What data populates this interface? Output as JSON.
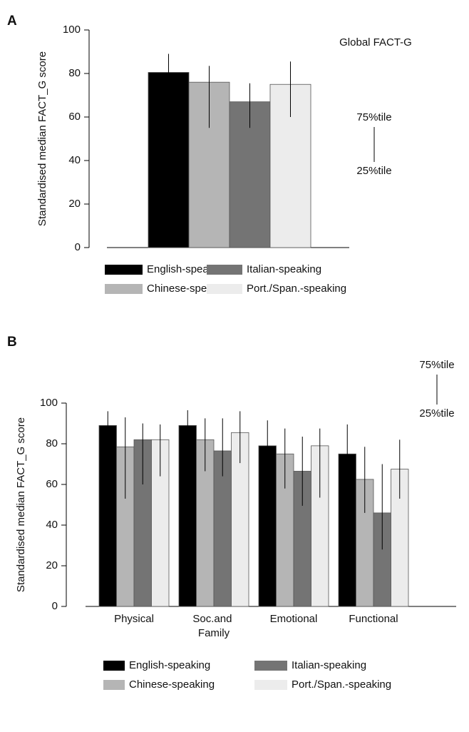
{
  "chart_data": [
    {
      "type": "bar",
      "panel_label": "A",
      "y_label": "Standardised median FACT_G score",
      "annotation": "Global FACT-G",
      "percentile_key": {
        "upper": "75%tile",
        "lower": "25%tile"
      },
      "categories": [
        null
      ],
      "series": [
        {
          "name": "English-speaking",
          "color": "#000000",
          "values": [
            80.5
          ],
          "q25": [
            70
          ],
          "q75": [
            89
          ]
        },
        {
          "name": "Chinese-speaking",
          "color": "#b5b5b5",
          "values": [
            76
          ],
          "q25": [
            55
          ],
          "q75": [
            83.5
          ]
        },
        {
          "name": "Italian-speaking",
          "color": "#747474",
          "values": [
            67
          ],
          "q25": [
            55
          ],
          "q75": [
            75.5
          ]
        },
        {
          "name": "Port./Span.-speaking",
          "color": "#ececec",
          "values": [
            75
          ],
          "q25": [
            60
          ],
          "q75": [
            85.5
          ]
        }
      ],
      "ylim": [
        0,
        100
      ],
      "yticks": [
        0,
        20,
        40,
        60,
        80,
        100
      ]
    },
    {
      "type": "bar",
      "panel_label": "B",
      "y_label": "Standardised median FACT_G score",
      "percentile_key": {
        "upper": "75%tile",
        "lower": "25%tile"
      },
      "categories": [
        "Physical",
        "Soc.and Family",
        "Emotional",
        "Functional"
      ],
      "series": [
        {
          "name": "English-speaking",
          "color": "#000000",
          "values": [
            89,
            89,
            79,
            75
          ],
          "q25": [
            82,
            80,
            70,
            64
          ],
          "q75": [
            96,
            96.5,
            91.5,
            89.5
          ]
        },
        {
          "name": "Chinese-speaking",
          "color": "#b5b5b5",
          "values": [
            78.5,
            82,
            75,
            62.5
          ],
          "q25": [
            53,
            66.5,
            58,
            46
          ],
          "q75": [
            93,
            92.5,
            87.5,
            78.5
          ]
        },
        {
          "name": "Italian-speaking",
          "color": "#747474",
          "values": [
            82,
            76.5,
            66.5,
            46
          ],
          "q25": [
            60,
            64,
            49.5,
            28
          ],
          "q75": [
            90,
            92.5,
            83.5,
            70
          ]
        },
        {
          "name": "Port./Span.-speaking",
          "color": "#ececec",
          "values": [
            82,
            85.5,
            79,
            67.5
          ],
          "q25": [
            64,
            70.5,
            53.5,
            53
          ],
          "q75": [
            89.5,
            96,
            87.5,
            82
          ]
        }
      ],
      "ylim": [
        0,
        100
      ],
      "yticks": [
        0,
        20,
        40,
        60,
        80,
        100
      ]
    }
  ]
}
